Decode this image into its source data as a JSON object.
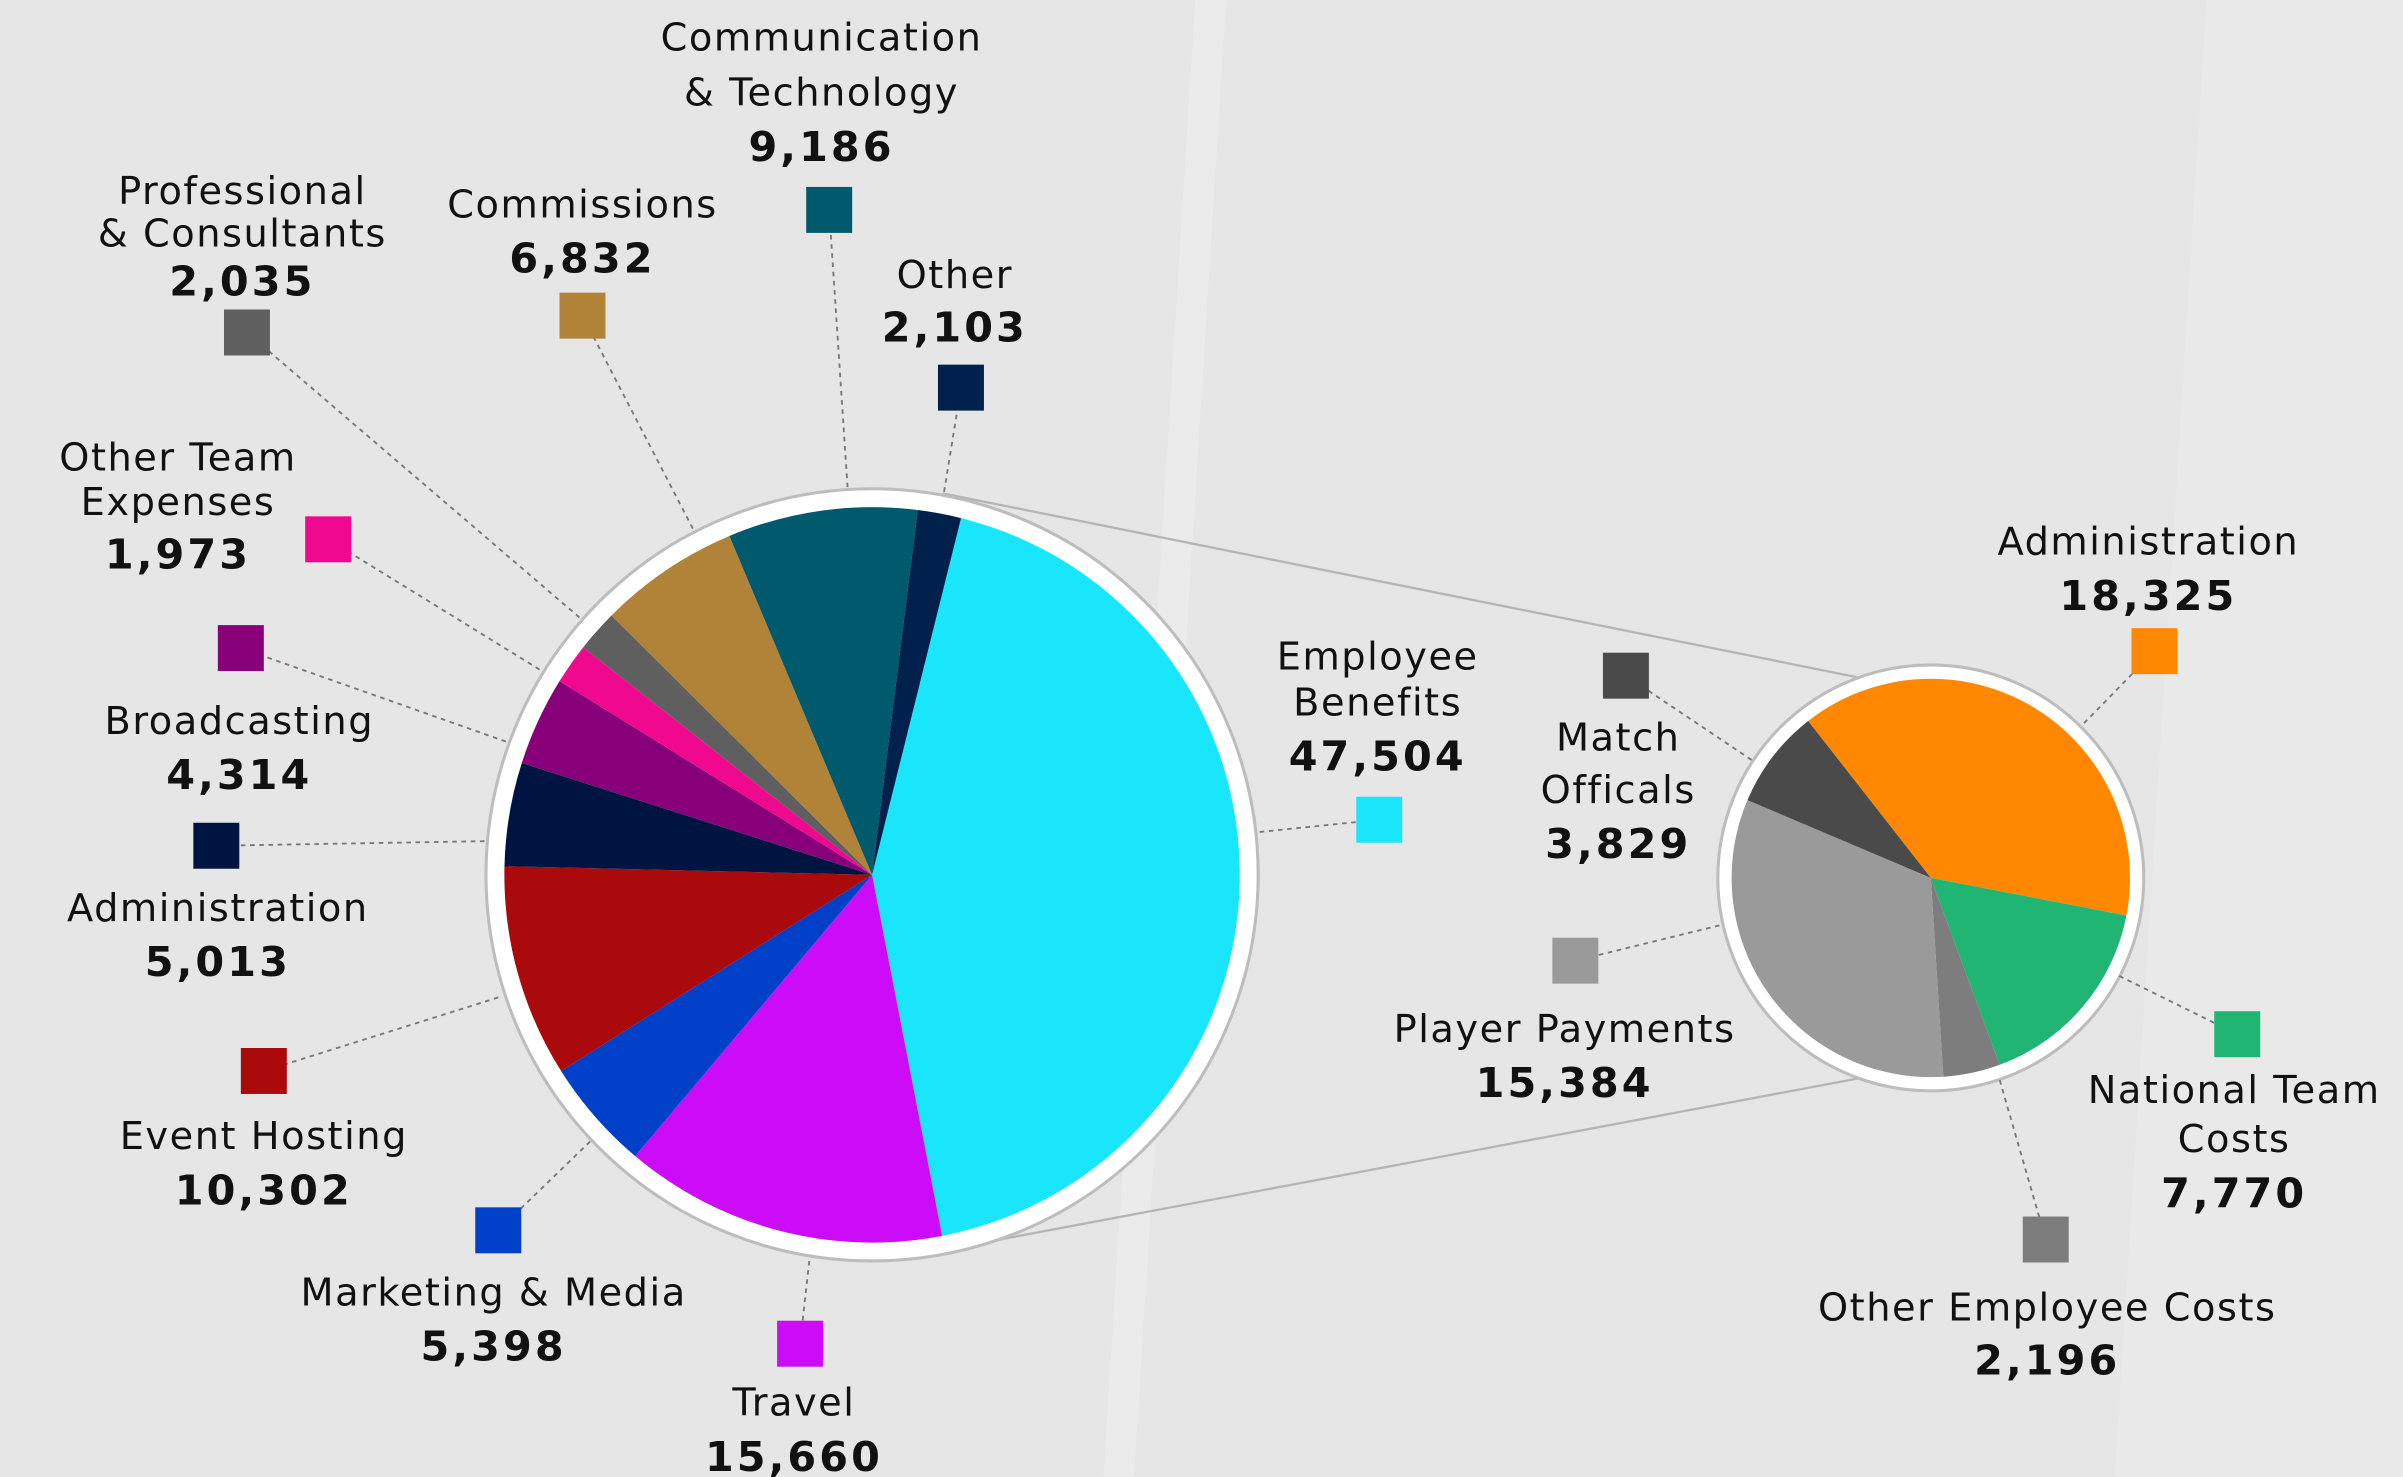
{
  "chart_data": [
    {
      "type": "pie",
      "categories": [
        "Employee Benefits",
        "Travel",
        "Marketing & Media",
        "Event Hosting",
        "Administration",
        "Broadcasting",
        "Other Team Expenses",
        "Professional & Consultants",
        "Commissions",
        "Communication & Technology",
        "Other"
      ],
      "values": [
        47504,
        15660,
        5398,
        10302,
        5013,
        4314,
        1973,
        2035,
        6832,
        9186,
        2103
      ],
      "value_labels": [
        "47,504",
        "15,660",
        "5,398",
        "10,302",
        "5,013",
        "4,314",
        "1,973",
        "2,035",
        "6,832",
        "9,186",
        "2,103"
      ],
      "colors": [
        "#1ae6fb",
        "#cc0cf7",
        "#0040c8",
        "#aa0a0c",
        "#001442",
        "#880079",
        "#f0088e",
        "#5f5f5f",
        "#b08338",
        "#005a6e",
        "#00214c"
      ]
    },
    {
      "type": "pie",
      "categories": [
        "Administration",
        "National Team Costs",
        "Other Employee Costs",
        "Player Payments",
        "Match Officals"
      ],
      "values": [
        18325,
        7770,
        2196,
        15384,
        3829
      ],
      "value_labels": [
        "18,325",
        "7,770",
        "2,196",
        "15,384",
        "3,829"
      ],
      "colors": [
        "#ff8800",
        "#20b573",
        "#7d7d7d",
        "#9a9a9a",
        "#4a4a4a"
      ]
    }
  ]
}
